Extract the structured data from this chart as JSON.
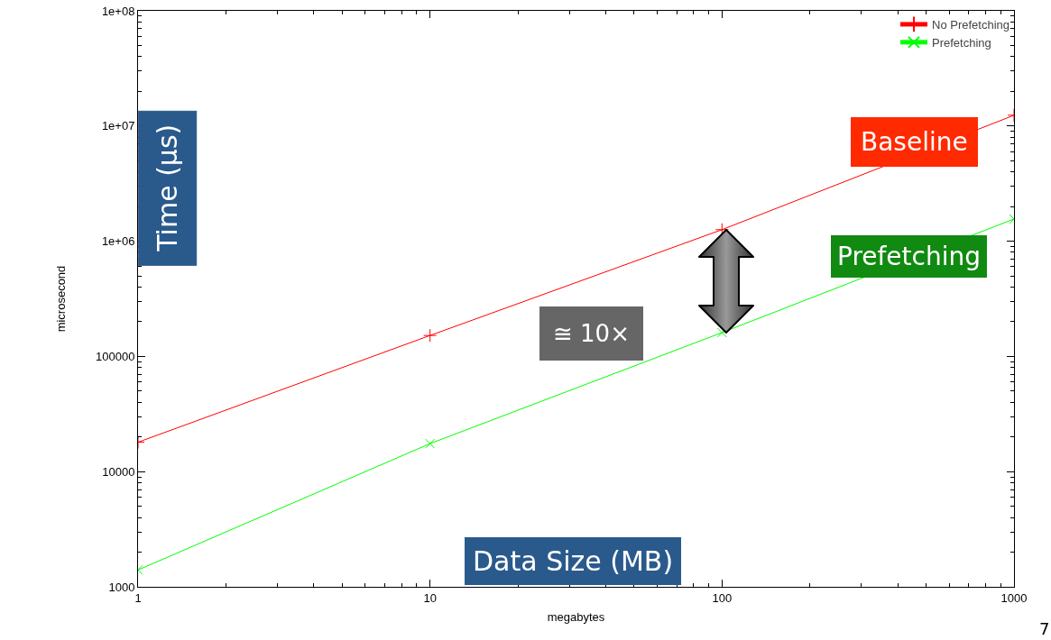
{
  "chart_data": {
    "type": "line",
    "xlabel": "megabytes",
    "ylabel": "microsecond",
    "x": [
      1,
      10,
      100,
      1000
    ],
    "series": [
      {
        "name": "No Prefetching",
        "color": "#ff0000",
        "marker": "cross",
        "values": [
          18000,
          152000,
          1260000,
          12400000
        ]
      },
      {
        "name": "Prefetching",
        "color": "#00ff00",
        "marker": "x",
        "values": [
          1400,
          17500,
          161000,
          1560000
        ]
      }
    ],
    "log": "xy",
    "xlim": [
      1,
      1000
    ],
    "ylim": [
      1000,
      100000000
    ],
    "xticks": [
      1,
      10,
      100,
      1000
    ],
    "yticks": [
      1000,
      10000,
      100000,
      {
        "value": 1000000,
        "label": "1e+06"
      },
      {
        "value": 10000000,
        "label": "1e+07"
      },
      {
        "value": 100000000,
        "label": "1e+08"
      }
    ],
    "grid": false,
    "legend": "top right",
    "annotations": [
      "Time (µs)",
      "Baseline",
      "Prefetching",
      "≅ 10×",
      "Data Size (MB)",
      "7"
    ]
  }
}
